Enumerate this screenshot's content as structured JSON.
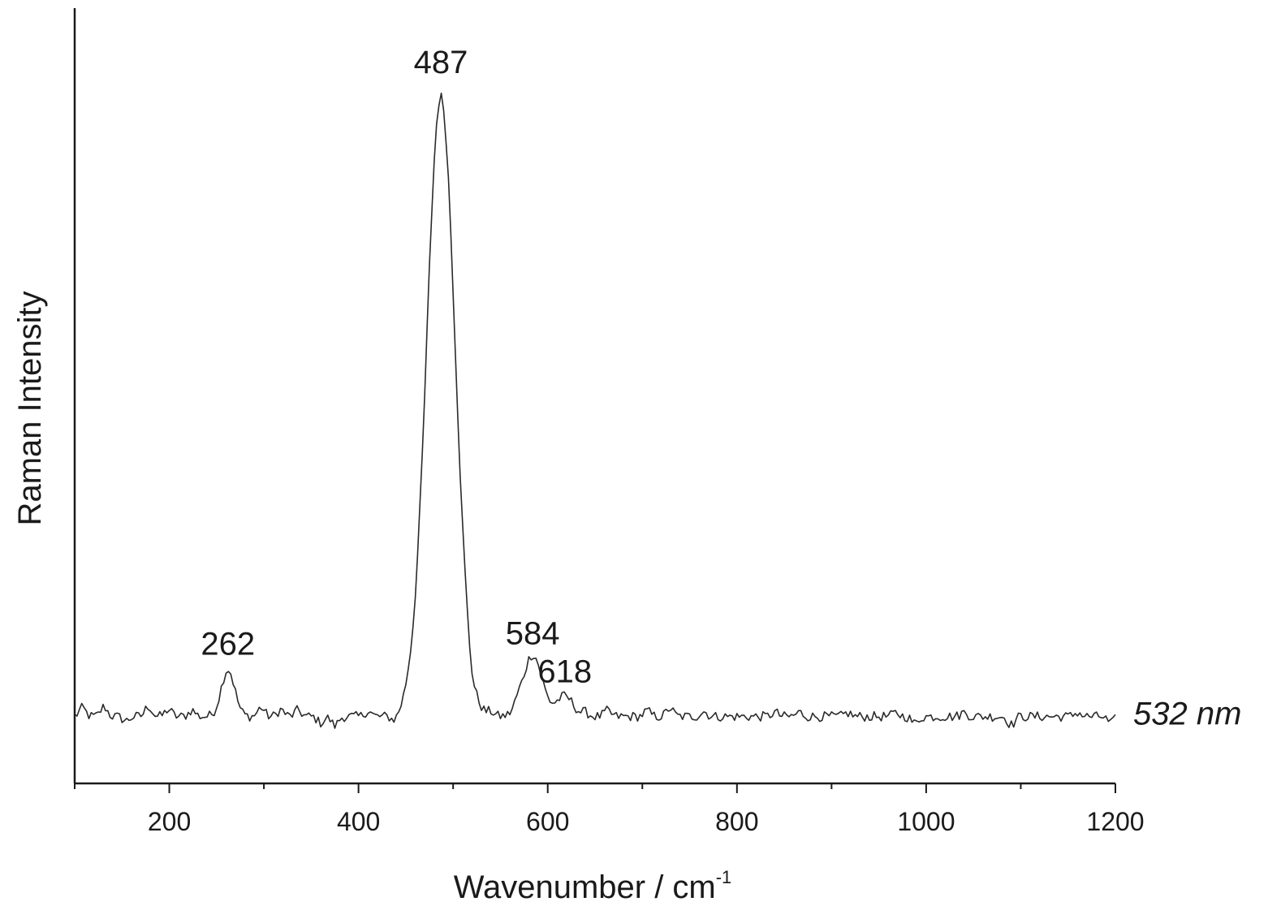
{
  "chart_data": {
    "type": "line",
    "title": "",
    "xlabel": "Wavenumber / cm",
    "xlabel_superscript": "-1",
    "ylabel": "Raman Intensity",
    "xlim": [
      100,
      1200
    ],
    "ylim": [
      0,
      100
    ],
    "x_ticks": [
      200,
      400,
      600,
      800,
      1000,
      1200
    ],
    "x_tick_labels": [
      "200",
      "400",
      "600",
      "800",
      "1000",
      "1200"
    ],
    "x_minor_ticks": [
      100,
      300,
      500,
      700,
      900,
      1100
    ],
    "y_tick_labels_shown": false,
    "grid": false,
    "line_color": "#2a2a2a",
    "series": [
      {
        "name": "532 nm",
        "baseline": 9.6,
        "noise_amplitude": 0.7,
        "noise_ripple": [
          [
            108,
            1.2
          ],
          [
            131,
            1.4
          ],
          [
            154,
            -0.6
          ],
          [
            178,
            1.5
          ],
          [
            199,
            1.0
          ],
          [
            224,
            0.9
          ],
          [
            297,
            1.3
          ],
          [
            318,
            1.0
          ],
          [
            336,
            0.9
          ],
          [
            360,
            -0.9
          ],
          [
            375,
            -1.3
          ],
          [
            410,
            0.8
          ],
          [
            438,
            -0.8
          ],
          [
            452,
            0.6
          ],
          [
            470,
            -0.6
          ],
          [
            520,
            -1.4
          ],
          [
            540,
            0.6
          ],
          [
            568,
            0.8
          ],
          [
            640,
            0.5
          ],
          [
            663,
            0.8
          ],
          [
            705,
            0.8
          ],
          [
            729,
            1.2
          ],
          [
            765,
            0.7
          ],
          [
            840,
            0.6
          ],
          [
            866,
            0.6
          ],
          [
            917,
            0.5
          ],
          [
            968,
            0.5
          ],
          [
            988,
            -1.0
          ],
          [
            1040,
            0.6
          ],
          [
            1090,
            -1.2
          ],
          [
            1160,
            0.6
          ],
          [
            1195,
            -1.0
          ]
        ],
        "peaks": [
          {
            "x": 262,
            "height": 6.8,
            "width": 7
          },
          {
            "x": 487,
            "height": 89.0,
            "width": 15
          },
          {
            "x": 584,
            "height": 8.9,
            "width": 10
          },
          {
            "x": 618,
            "height": 2.9,
            "width": 9
          }
        ]
      }
    ],
    "annotations": [
      {
        "text": "262",
        "x": 262,
        "y": 18.5
      },
      {
        "text": "487",
        "x": 487,
        "y": 102.0
      },
      {
        "text": "584",
        "x": 584,
        "y": 20.0
      },
      {
        "text": "618",
        "x": 618,
        "y": 14.5
      }
    ]
  }
}
